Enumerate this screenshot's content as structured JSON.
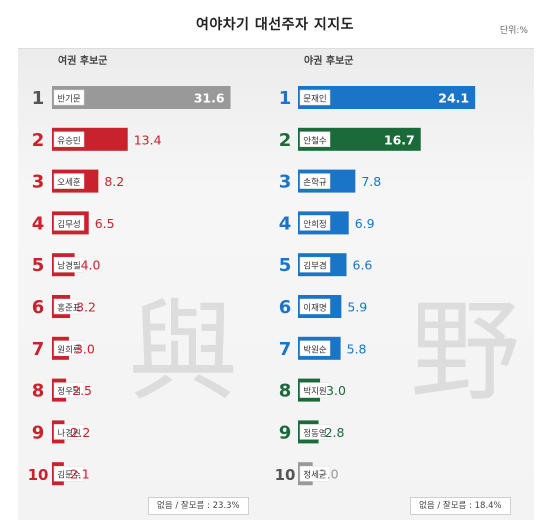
{
  "title": "여야차기 대선주자 지지도",
  "unit_label": "단위:%",
  "watermark": {
    "left": "與",
    "right": "野"
  },
  "chart_data": [
    {
      "type": "bar",
      "orientation": "horizontal",
      "group_label": "여권 후보군",
      "ranks": [
        "1",
        "2",
        "3",
        "4",
        "5",
        "6",
        "7",
        "8",
        "9",
        "10"
      ],
      "categories": [
        "반기문",
        "유승민",
        "오세훈",
        "김무성",
        "남경필",
        "홍준표",
        "원희룡",
        "정우택",
        "나경원",
        "김문수"
      ],
      "values": [
        31.6,
        13.4,
        8.2,
        6.5,
        4.0,
        3.2,
        3.0,
        2.5,
        2.2,
        2.1
      ],
      "value_labels": [
        "31.6",
        "13.4",
        "8.2",
        "6.5",
        "4.0",
        "3.2",
        "3.0",
        "2.5",
        "2.2",
        "2.1"
      ],
      "bar_colors": [
        "#999999",
        "#c8232c",
        "#c8232c",
        "#c8232c",
        "#c8232c",
        "#c8232c",
        "#c8232c",
        "#c8232c",
        "#c8232c",
        "#c8232c"
      ],
      "rank_colors": [
        "#555555",
        "#c8232c",
        "#c8232c",
        "#c8232c",
        "#c8232c",
        "#c8232c",
        "#c8232c",
        "#c8232c",
        "#c8232c",
        "#c8232c"
      ],
      "note": "없음 / 잘모름 : 23.3%"
    },
    {
      "type": "bar",
      "orientation": "horizontal",
      "group_label": "야권 후보군",
      "ranks": [
        "1",
        "2",
        "3",
        "4",
        "5",
        "6",
        "7",
        "8",
        "9",
        "10"
      ],
      "categories": [
        "문재인",
        "안철수",
        "손학규",
        "안희정",
        "김부겸",
        "이재명",
        "박원순",
        "박지원",
        "정동영",
        "정세균"
      ],
      "values": [
        24.1,
        16.7,
        7.8,
        6.9,
        6.6,
        5.9,
        5.8,
        3.0,
        2.8,
        2.0
      ],
      "value_labels": [
        "24.1",
        "16.7",
        "7.8",
        "6.9",
        "6.6",
        "5.9",
        "5.8",
        "3.0",
        "2.8",
        "2.0"
      ],
      "bar_colors": [
        "#1a75c9",
        "#1b6b3a",
        "#1a75c9",
        "#1a75c9",
        "#1a75c9",
        "#1a75c9",
        "#1a75c9",
        "#1b6b3a",
        "#1b6b3a",
        "#999999"
      ],
      "rank_colors": [
        "#1a75c9",
        "#1b6b3a",
        "#1a75c9",
        "#1a75c9",
        "#1a75c9",
        "#1a75c9",
        "#1a75c9",
        "#1b6b3a",
        "#1b6b3a",
        "#555555"
      ],
      "note": "없음 / 잘모름 : 18.4%"
    }
  ]
}
